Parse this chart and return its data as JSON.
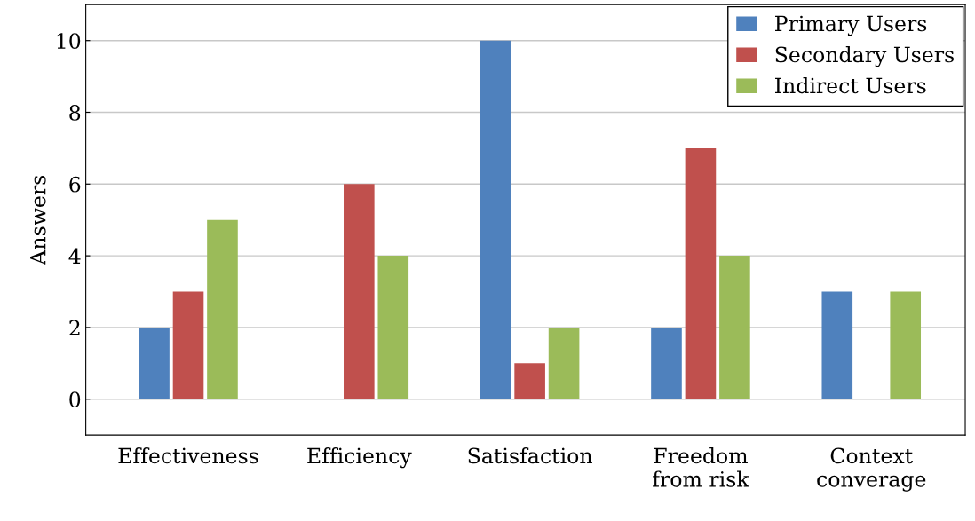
{
  "chart_data": {
    "type": "bar",
    "ylabel": "Answers",
    "categories": [
      "Effectiveness",
      "Efficiency",
      "Satisfaction",
      "Freedom\nfrom risk",
      "Context\nconverage"
    ],
    "series": [
      {
        "name": "Primary Users",
        "color": "#4f81bd",
        "values": [
          2,
          0,
          10,
          2,
          3
        ]
      },
      {
        "name": "Secondary Users",
        "color": "#c0504d",
        "values": [
          3,
          6,
          1,
          7,
          0
        ]
      },
      {
        "name": "Indirect Users",
        "color": "#9bbb59",
        "values": [
          5,
          4,
          2,
          4,
          3
        ]
      }
    ],
    "ylim": [
      -1,
      11
    ],
    "yticks": [
      0,
      2,
      4,
      6,
      8,
      10
    ],
    "grid": "y",
    "legend": "top right"
  }
}
